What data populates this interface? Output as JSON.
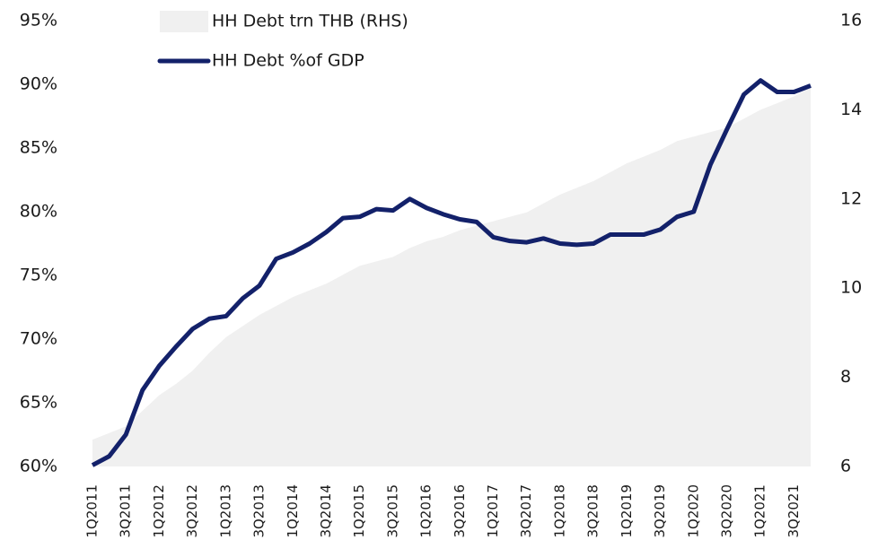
{
  "chart_data": {
    "type": "line",
    "categories": [
      "1Q2011",
      null,
      "3Q2011",
      null,
      "1Q2012",
      null,
      "3Q2012",
      null,
      "1Q2013",
      null,
      "3Q2013",
      null,
      "1Q2014",
      null,
      "3Q2014",
      null,
      "1Q2015",
      null,
      "3Q2015",
      null,
      "1Q2016",
      null,
      "3Q2016",
      null,
      "1Q2017",
      null,
      "3Q2017",
      null,
      "1Q2018",
      null,
      "3Q2018",
      null,
      "1Q2019",
      null,
      "3Q2019",
      null,
      "1Q2020",
      null,
      "3Q2020",
      null,
      "1Q2021",
      null,
      "3Q2021",
      null
    ],
    "series": [
      {
        "name": "HH Debt trn THB (RHS)",
        "color": "#f0f0f0",
        "axis": "y2",
        "kind": "area",
        "values": [
          6.6,
          6.75,
          6.9,
          7.25,
          7.6,
          7.85,
          8.15,
          8.55,
          8.9,
          9.15,
          9.4,
          9.6,
          9.8,
          9.95,
          10.1,
          10.3,
          10.5,
          10.6,
          10.7,
          10.9,
          11.05,
          11.15,
          11.3,
          11.4,
          11.5,
          11.6,
          11.7,
          11.9,
          12.1,
          12.25,
          12.4,
          12.6,
          12.8,
          12.95,
          13.1,
          13.3,
          13.4,
          13.5,
          13.6,
          13.8,
          14.0,
          14.15,
          14.3,
          14.5
        ]
      },
      {
        "name": "HH Debt %of GDP",
        "color": "#13216a",
        "axis": "y",
        "kind": "line",
        "values": [
          60.1,
          60.8,
          62.5,
          66.0,
          67.9,
          69.4,
          70.8,
          71.6,
          71.8,
          73.2,
          74.2,
          76.3,
          76.8,
          77.5,
          78.4,
          79.5,
          79.6,
          80.2,
          80.1,
          81.0,
          80.3,
          79.8,
          79.4,
          79.2,
          78.0,
          77.7,
          77.6,
          77.9,
          77.5,
          77.4,
          77.5,
          78.2,
          78.2,
          78.2,
          78.6,
          79.6,
          80.0,
          83.7,
          86.5,
          89.2,
          90.3,
          89.4,
          89.4,
          89.9
        ]
      }
    ],
    "ylim": [
      60,
      95
    ],
    "yticks": [
      {
        "value": 60,
        "label": "60%"
      },
      {
        "value": 65,
        "label": "65%"
      },
      {
        "value": 70,
        "label": "70%"
      },
      {
        "value": 75,
        "label": "75%"
      },
      {
        "value": 80,
        "label": "80%"
      },
      {
        "value": 85,
        "label": "85%"
      },
      {
        "value": 90,
        "label": "90%"
      },
      {
        "value": 95,
        "label": "95%"
      }
    ],
    "y2lim": [
      6,
      16
    ],
    "y2ticks": [
      6,
      8,
      10,
      12,
      14,
      16
    ],
    "grid": false
  }
}
